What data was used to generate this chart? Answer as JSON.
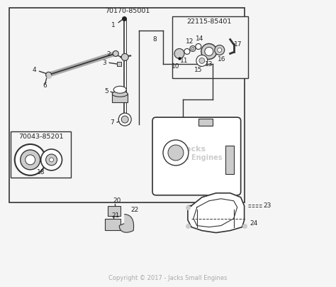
{
  "background_color": "#f5f5f5",
  "border_color": "#222222",
  "copyright": "Copyright © 2017 - Jacks Small Engines",
  "watermark_line1": "Jacks",
  "watermark_line2": "Small Engines",
  "sub_box1_label": "70170-85001",
  "sub_box2_label": "22115-85401",
  "sub_box3_label": "70043-85201",
  "lc": "#333333",
  "tc": "#222222",
  "gray": "#888888",
  "lgray": "#cccccc",
  "lfs": 6.5,
  "bfs": 6.8
}
